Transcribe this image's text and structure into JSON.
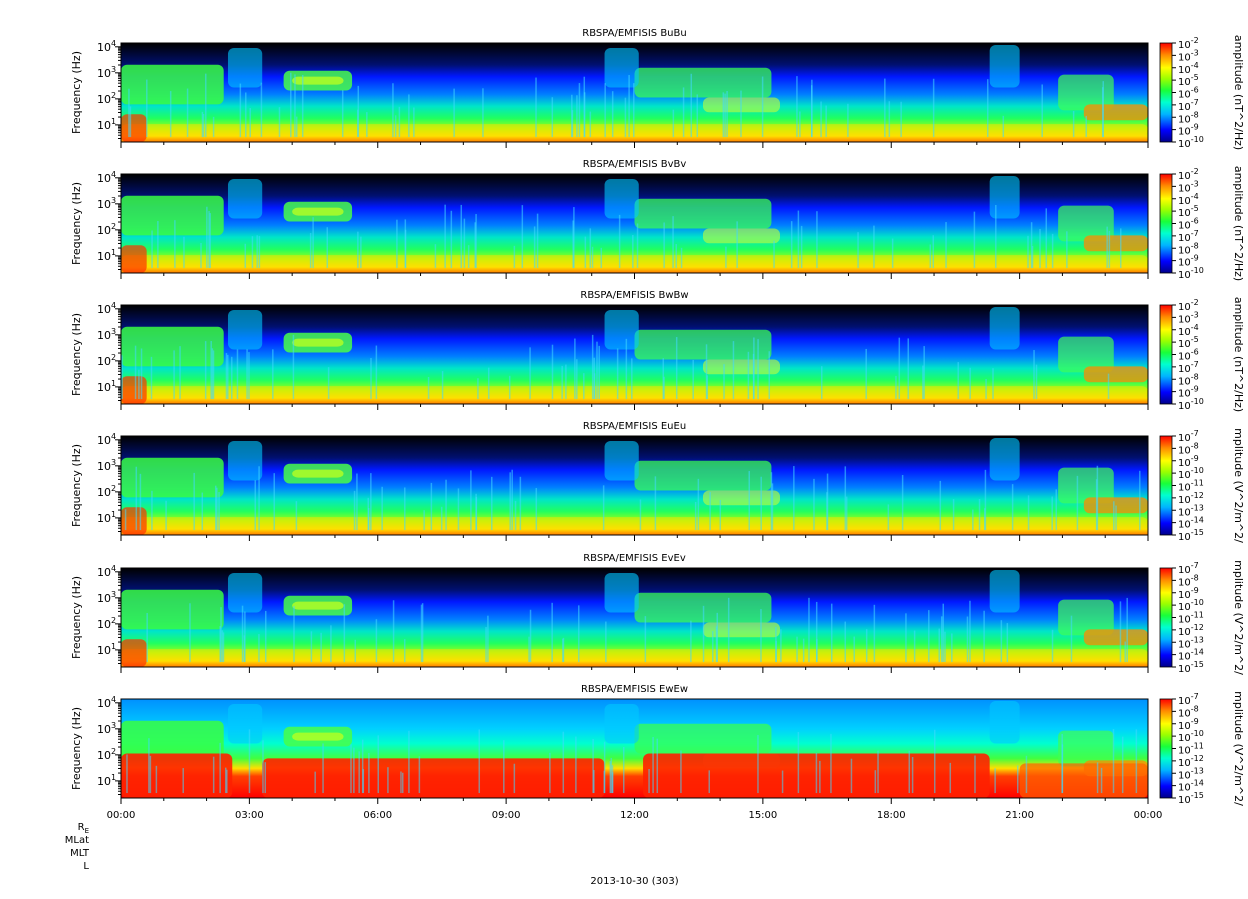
{
  "figure": {
    "date_label": "2013-10-30 (303)",
    "ephemeris_labels": [
      "Rₑ",
      "MLat",
      "MLT",
      "L"
    ],
    "ephemeris_sub_label": "E"
  },
  "chart_data": [
    {
      "type": "heatmap",
      "title": "RBSPA/EMFISIS  BuBu",
      "ylabel": "Frequency (Hz)",
      "ylim": [
        2.2,
        14000
      ],
      "yscale": "log",
      "yticks": [
        "10^1",
        "10^2",
        "10^3",
        "10^4"
      ],
      "xlim": [
        "00:00",
        "00:00 (next day)"
      ],
      "colorbar_label": "amplitude (nT^2/Hz)",
      "colorbar_ticks": [
        "10^-2",
        "10^-3",
        "10^-4",
        "10^-5",
        "10^-6",
        "10^-7",
        "10^-8",
        "10^-9",
        "10^-10"
      ]
    },
    {
      "type": "heatmap",
      "title": "RBSPA/EMFISIS  BvBv",
      "ylabel": "Frequency (Hz)",
      "ylim": [
        2.2,
        14000
      ],
      "yscale": "log",
      "yticks": [
        "10^1",
        "10^2",
        "10^3",
        "10^4"
      ],
      "xlim": [
        "00:00",
        "00:00 (next day)"
      ],
      "colorbar_label": "amplitude (nT^2/Hz)",
      "colorbar_ticks": [
        "10^-2",
        "10^-3",
        "10^-4",
        "10^-5",
        "10^-6",
        "10^-7",
        "10^-8",
        "10^-9",
        "10^-10"
      ]
    },
    {
      "type": "heatmap",
      "title": "RBSPA/EMFISIS  BwBw",
      "ylabel": "Frequency (Hz)",
      "ylim": [
        2.2,
        14000
      ],
      "yscale": "log",
      "yticks": [
        "10^1",
        "10^2",
        "10^3",
        "10^4"
      ],
      "xlim": [
        "00:00",
        "00:00 (next day)"
      ],
      "colorbar_label": "amplitude (nT^2/Hz)",
      "colorbar_ticks": [
        "10^-2",
        "10^-3",
        "10^-4",
        "10^-5",
        "10^-6",
        "10^-7",
        "10^-8",
        "10^-9",
        "10^-10"
      ]
    },
    {
      "type": "heatmap",
      "title": "RBSPA/EMFISIS  EuEu",
      "ylabel": "Frequency (Hz)",
      "ylim": [
        2.2,
        14000
      ],
      "yscale": "log",
      "yticks": [
        "10^1",
        "10^2",
        "10^3",
        "10^4"
      ],
      "xlim": [
        "00:00",
        "00:00 (next day)"
      ],
      "colorbar_label": "mplitude (V^2/m^2/",
      "colorbar_ticks": [
        "10^-7",
        "10^-8",
        "10^-9",
        "10^-10",
        "10^-11",
        "10^-12",
        "10^-13",
        "10^-14",
        "10^-15"
      ]
    },
    {
      "type": "heatmap",
      "title": "RBSPA/EMFISIS  EvEv",
      "ylabel": "Frequency (Hz)",
      "ylim": [
        2.2,
        14000
      ],
      "yscale": "log",
      "yticks": [
        "10^1",
        "10^2",
        "10^3",
        "10^4"
      ],
      "xlim": [
        "00:00",
        "00:00 (next day)"
      ],
      "colorbar_label": "mplitude (V^2/m^2/",
      "colorbar_ticks": [
        "10^-7",
        "10^-8",
        "10^-9",
        "10^-10",
        "10^-11",
        "10^-12",
        "10^-13",
        "10^-14",
        "10^-15"
      ]
    },
    {
      "type": "heatmap",
      "title": "RBSPA/EMFISIS  EwEw",
      "ylabel": "Frequency (Hz)",
      "ylim": [
        2.2,
        14000
      ],
      "yscale": "log",
      "yticks": [
        "10^1",
        "10^2",
        "10^3",
        "10^4"
      ],
      "xlim": [
        "00:00",
        "00:00 (next day)"
      ],
      "xticks": [
        "00:00",
        "03:00",
        "06:00",
        "09:00",
        "12:00",
        "15:00",
        "18:00",
        "21:00",
        "00:00"
      ],
      "colorbar_label": "mplitude (V^2/m^2/",
      "colorbar_ticks": [
        "10^-7",
        "10^-8",
        "10^-9",
        "10^-10",
        "10^-11",
        "10^-12",
        "10^-13",
        "10^-14",
        "10^-15"
      ]
    }
  ]
}
